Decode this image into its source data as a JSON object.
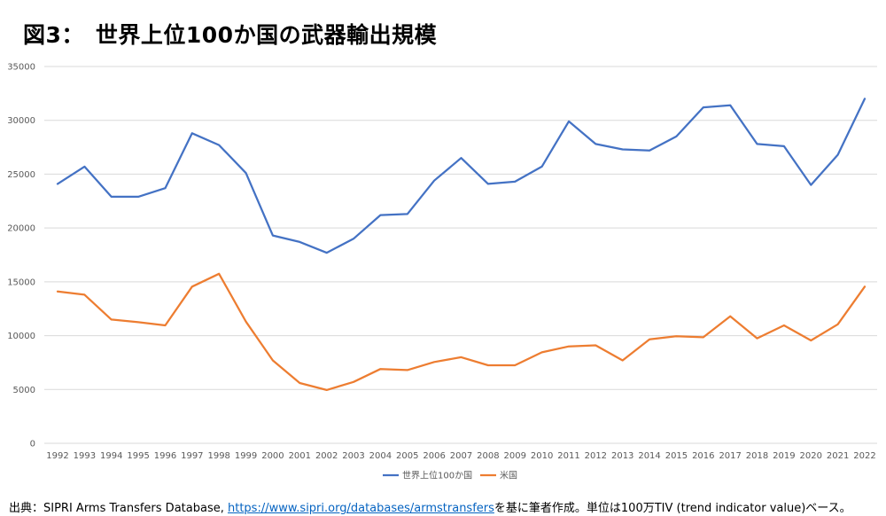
{
  "title": "図3：　世界上位100か国の武器輸出規模",
  "source": {
    "prefix": "出典：SIPRI Arms Transfers Database,",
    "link_text": "https://www.sipri.org/databases/armstransfers",
    "suffix": "を基に筆者作成。単位は100万TIV (trend indicator value)ベース。"
  },
  "chart_data": {
    "type": "line",
    "title": "",
    "xlabel": "",
    "ylabel": "",
    "ylim": [
      0,
      35000
    ],
    "yticks": [
      0,
      5000,
      10000,
      15000,
      20000,
      25000,
      30000,
      35000
    ],
    "grid": true,
    "legend_position": "bottom",
    "categories": [
      "1992",
      "1993",
      "1994",
      "1995",
      "1996",
      "1997",
      "1998",
      "1999",
      "2000",
      "2001",
      "2002",
      "2003",
      "2004",
      "2005",
      "2006",
      "2007",
      "2008",
      "2009",
      "2010",
      "2011",
      "2012",
      "2013",
      "2014",
      "2015",
      "2016",
      "2017",
      "2018",
      "2019",
      "2020",
      "2021",
      "2022"
    ],
    "series": [
      {
        "name": "世界上位100か国",
        "color": "#4472c4",
        "values": [
          24100,
          25700,
          22900,
          22900,
          23700,
          28800,
          27700,
          25100,
          19300,
          18700,
          17700,
          19000,
          21200,
          21300,
          24400,
          26500,
          24100,
          24300,
          25700,
          29900,
          27800,
          27300,
          27200,
          28500,
          31200,
          31400,
          27800,
          27600,
          24000,
          26800,
          32000
        ]
      },
      {
        "name": "米国",
        "color": "#ed7d31",
        "values": [
          14100,
          13800,
          11500,
          11250,
          10950,
          14550,
          15750,
          11300,
          7700,
          5600,
          4950,
          5700,
          6900,
          6800,
          7550,
          8000,
          7250,
          7250,
          8450,
          9000,
          9100,
          7700,
          9650,
          9950,
          9850,
          11800,
          9750,
          10950,
          9550,
          11050,
          14550
        ]
      }
    ]
  }
}
